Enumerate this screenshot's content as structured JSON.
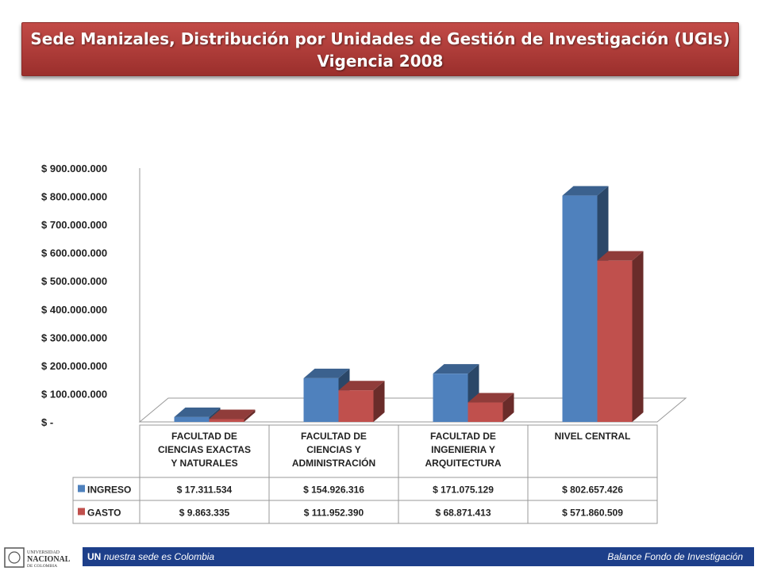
{
  "slide": {
    "title_line1": "Sede Manizales, Distribución por Unidades de Gestión de Investigación (UGIs)",
    "title_line2": "Vigencia 2008"
  },
  "footer": {
    "left_bold": "UN",
    "left_text": "nuestra sede es Colombia",
    "right_text": "Balance Fondo de Investigación",
    "logo_line1": "UNIVERSIDAD",
    "logo_line2": "NACIONAL",
    "logo_line3": "DE COLOMBIA"
  },
  "colors": {
    "ingreso": "#4f81bd",
    "gasto": "#c0504d",
    "banner": "#a83532",
    "footer": "#1d3f8a"
  },
  "chart_data": {
    "type": "bar",
    "title": "",
    "categories": [
      [
        "FACULTAD DE",
        "CIENCIAS EXACTAS",
        "Y NATURALES"
      ],
      [
        "FACULTAD DE",
        "CIENCIAS Y",
        "ADMINISTRACIÓN"
      ],
      [
        "FACULTAD DE",
        "INGENIERIA  Y",
        "ARQUITECTURA"
      ],
      [
        "NIVEL CENTRAL"
      ]
    ],
    "series": [
      {
        "name": "INGRESO",
        "values": [
          17311534,
          154926316,
          171075129,
          802657426
        ],
        "labels": [
          "$ 17.311.534",
          "$ 154.926.316",
          "$ 171.075.129",
          "$ 802.657.426"
        ]
      },
      {
        "name": "GASTO",
        "values": [
          9863335,
          111952390,
          68871413,
          571860509
        ],
        "labels": [
          "$ 9.863.335",
          "$ 111.952.390",
          "$ 68.871.413",
          "$ 571.860.509"
        ]
      }
    ],
    "ylim": [
      0,
      900000000
    ],
    "yticks": [
      0,
      100000000,
      200000000,
      300000000,
      400000000,
      500000000,
      600000000,
      700000000,
      800000000,
      900000000
    ],
    "ytick_labels": [
      "$ -",
      "$ 100.000.000",
      "$ 200.000.000",
      "$ 300.000.000",
      "$ 400.000.000",
      "$ 500.000.000",
      "$ 600.000.000",
      "$ 700.000.000",
      "$ 800.000.000",
      "$ 900.000.000"
    ],
    "data_table": true,
    "grid": false,
    "chart_style": "3d-clustered-column"
  }
}
